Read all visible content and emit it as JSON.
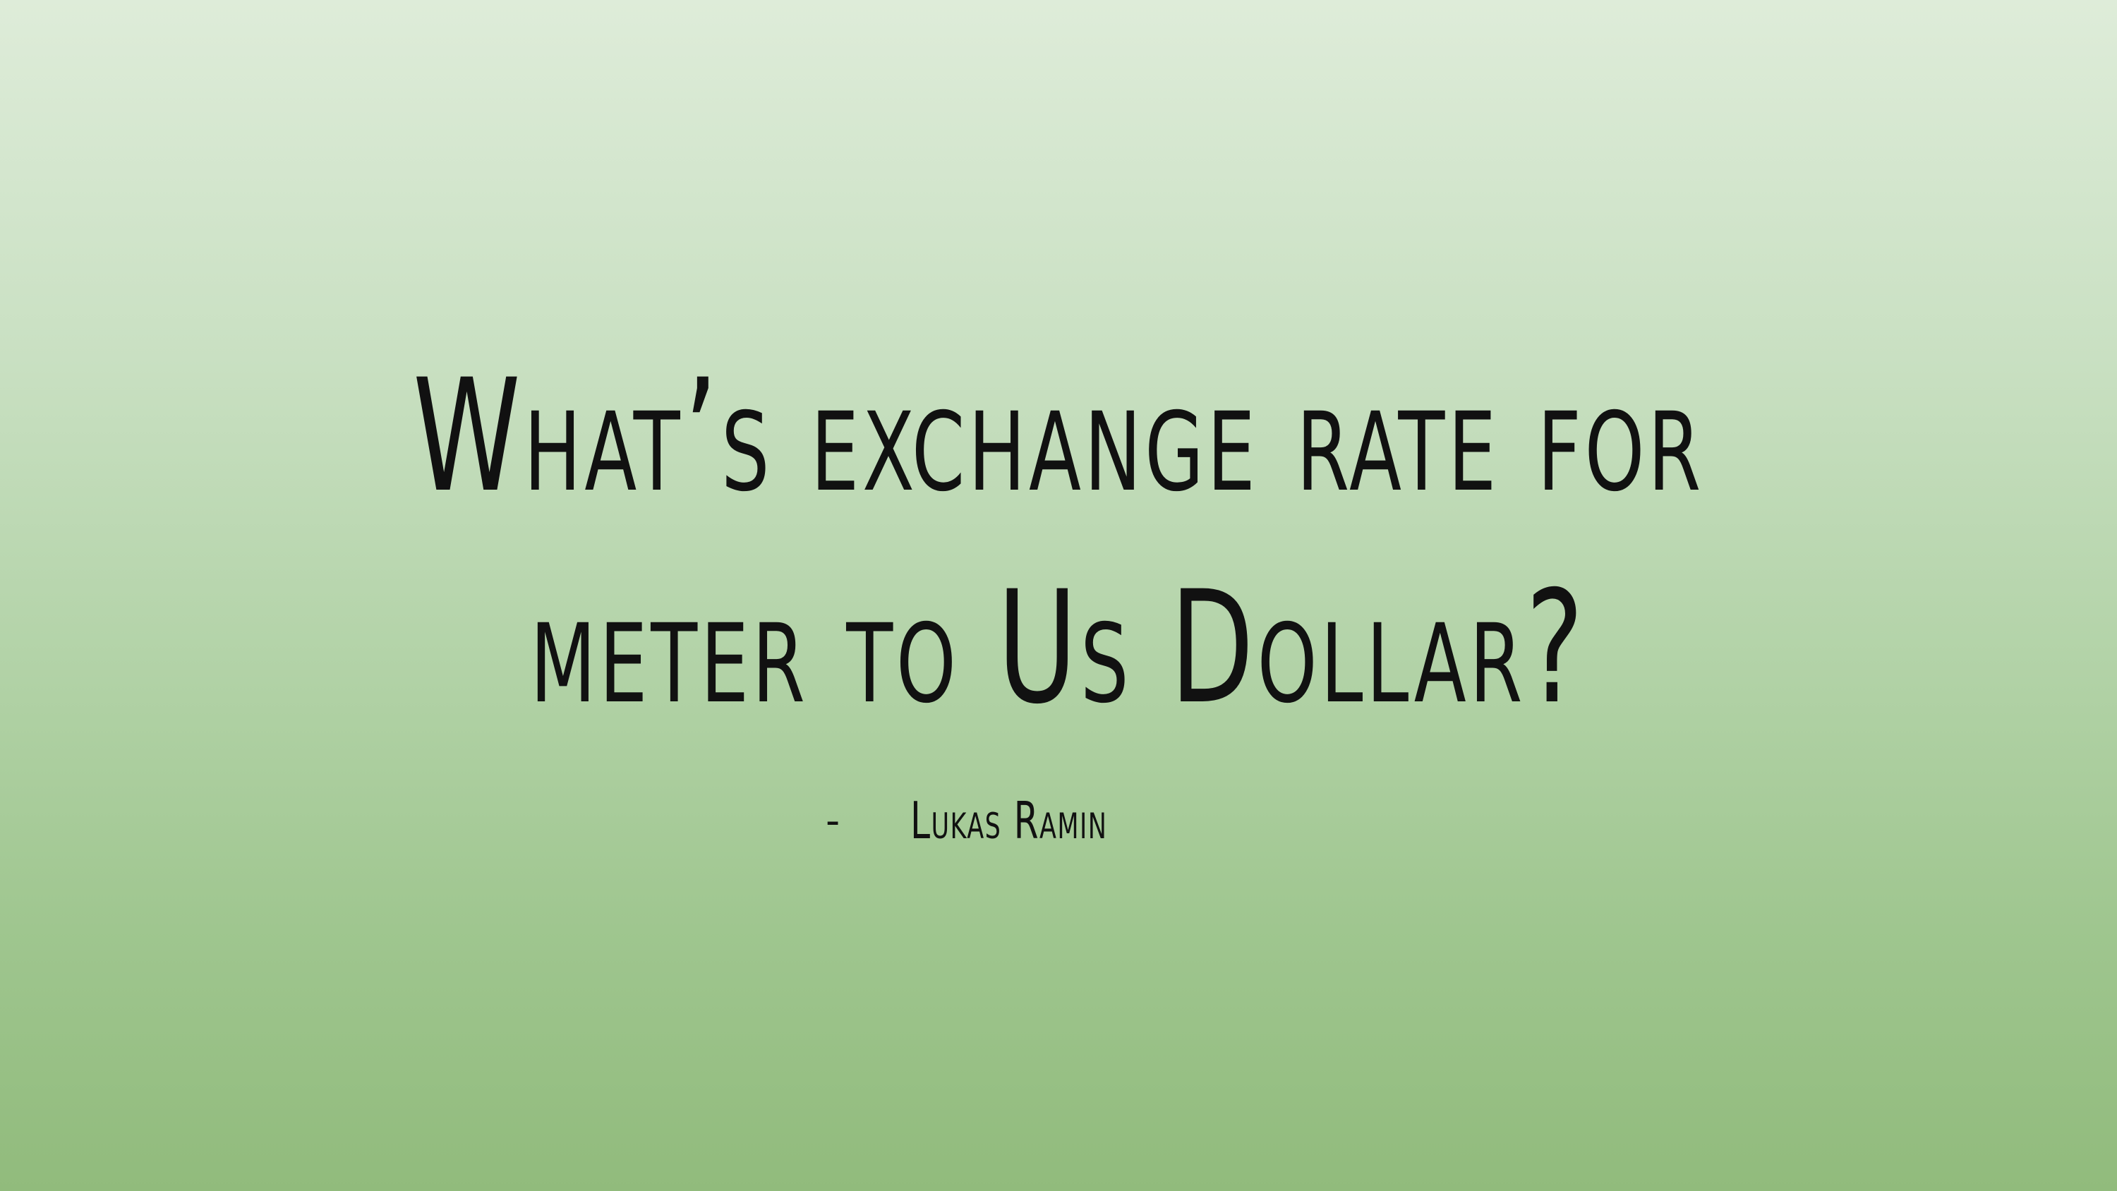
{
  "slide": {
    "title": "What’s exchange rate for meter to Us Dollar?",
    "attribution_dash": "-",
    "author": "Lukas Ramin",
    "colors": {
      "gradient_top": "#deecd9",
      "gradient_bottom": "#91bb7c",
      "text": "#111111"
    }
  }
}
